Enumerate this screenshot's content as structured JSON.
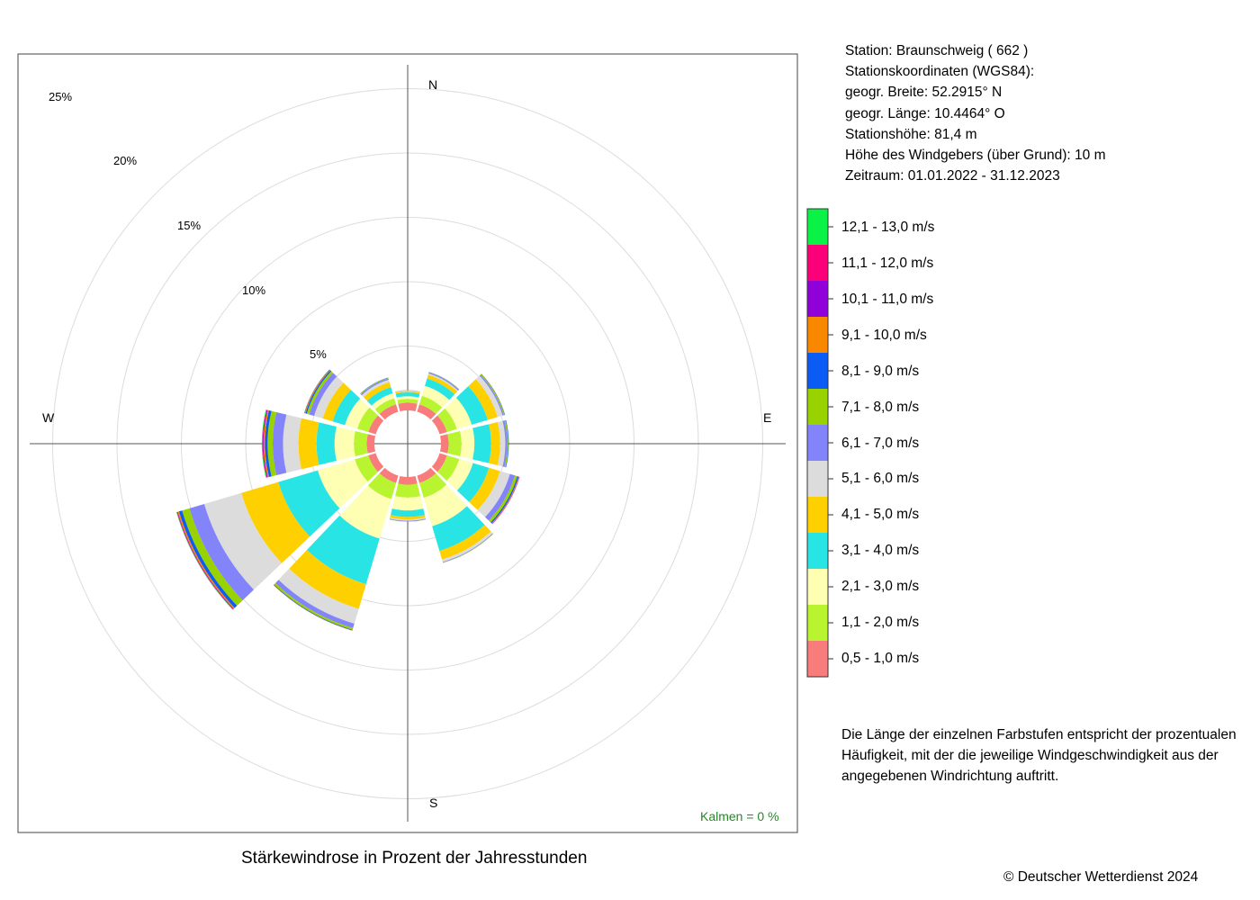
{
  "station": {
    "line1": "Station:  Braunschweig  ( 662 )",
    "line2": "Stationskoordinaten (WGS84):",
    "line3": "geogr. Breite: 52.2915° N",
    "line4": "geogr. Länge: 10.4464° O",
    "line5": "Stationshöhe: 81,4 m",
    "line6": "Höhe des Windgebers (über Grund): 10 m",
    "line7": "Zeitraum: 01.01.2022 - 31.12.2023"
  },
  "note": "Die Länge der einzelnen Farbstufen entspricht der prozentualen Häufigkeit, mit der die jeweilige Windgeschwindigkeit aus der angegebenen Windrichtung auftritt.",
  "caption": "Stärkewindrose in Prozent der Jahresstunden",
  "copyright": "© Deutscher Wetterdienst  2024",
  "kalmen": "Kalmen  =  0 %",
  "chart_data": {
    "type": "wind-rose",
    "title": "Stärkewindrose in Prozent der Jahresstunden",
    "compass": {
      "n": "N",
      "e": "E",
      "s": "S",
      "w": "W"
    },
    "radial_ticks": [
      5,
      10,
      15,
      20,
      25
    ],
    "radial_tick_labels": [
      "5%",
      "10%",
      "15%",
      "20%",
      "25%"
    ],
    "grid": true,
    "legend_position": "right",
    "speed_classes": [
      {
        "label": "0,5 - 1,0 m/s",
        "color": "#f87c7c"
      },
      {
        "label": "1,1 - 2,0 m/s",
        "color": "#b9f431"
      },
      {
        "label": "2,1 - 3,0 m/s",
        "color": "#feffb2"
      },
      {
        "label": "3,1 - 4,0 m/s",
        "color": "#29e4e4"
      },
      {
        "label": "4,1 - 5,0 m/s",
        "color": "#fed000"
      },
      {
        "label": "5,1 - 6,0 m/s",
        "color": "#dcdcdc"
      },
      {
        "label": "6,1 - 7,0 m/s",
        "color": "#8484fa"
      },
      {
        "label": "7,1 - 8,0 m/s",
        "color": "#98d200"
      },
      {
        "label": "8,1 - 9,0 m/s",
        "color": "#0a5cf4"
      },
      {
        "label": "9,1 - 10,0 m/s",
        "color": "#fa8700"
      },
      {
        "label": "10,1 - 11,0 m/s",
        "color": "#9000d8"
      },
      {
        "label": "11,1 - 12,0 m/s",
        "color": "#fc0079"
      },
      {
        "label": "12,1 - 13,0 m/s",
        "color": "#09f245"
      }
    ],
    "sectors": [
      {
        "direction_deg": 0,
        "values": [
          0.6,
          0.3,
          0.2,
          0.3,
          0.1,
          0.05,
          0.02,
          0.01,
          0,
          0,
          0,
          0,
          0
        ]
      },
      {
        "direction_deg": 30,
        "values": [
          0.6,
          0.7,
          0.8,
          0.6,
          0.3,
          0.1,
          0.08,
          0.03,
          0.02,
          0,
          0,
          0,
          0
        ]
      },
      {
        "direction_deg": 60,
        "values": [
          0.6,
          0.8,
          1.2,
          1.3,
          0.8,
          0.4,
          0.1,
          0.07,
          0.03,
          0.01,
          0,
          0,
          0
        ]
      },
      {
        "direction_deg": 90,
        "values": [
          0.6,
          1.0,
          1.0,
          1.3,
          0.7,
          0.4,
          0.15,
          0.08,
          0.04,
          0,
          0,
          0,
          0
        ]
      },
      {
        "direction_deg": 120,
        "values": [
          0.6,
          1.0,
          1.1,
          1.3,
          0.9,
          0.8,
          0.4,
          0.2,
          0.1,
          0.05,
          0.02,
          0.02,
          0
        ]
      },
      {
        "direction_deg": 150,
        "values": [
          0.6,
          1.2,
          2.3,
          2.0,
          0.7,
          0.2,
          0.05,
          0.03,
          0,
          0,
          0,
          0,
          0
        ]
      },
      {
        "direction_deg": 180,
        "values": [
          0.6,
          1.0,
          1.0,
          0.5,
          0.2,
          0.1,
          0.05,
          0.02,
          0,
          0,
          0,
          0,
          0
        ]
      },
      {
        "direction_deg": 210,
        "values": [
          0.6,
          1.3,
          3.2,
          3.7,
          2.0,
          1.2,
          0.35,
          0.15,
          0.05,
          0.02,
          0,
          0,
          0
        ]
      },
      {
        "direction_deg": 240,
        "values": [
          0.6,
          1.1,
          3.0,
          3.2,
          3.0,
          3.0,
          1.2,
          0.6,
          0.25,
          0.1,
          0.04,
          0.04,
          0.03
        ]
      },
      {
        "direction_deg": 270,
        "values": [
          0.6,
          1.0,
          1.5,
          1.4,
          1.4,
          1.2,
          0.8,
          0.4,
          0.2,
          0.1,
          0.05,
          0.05,
          0.05
        ]
      },
      {
        "direction_deg": 300,
        "values": [
          0.6,
          0.9,
          1.0,
          1.0,
          0.8,
          0.7,
          0.4,
          0.2,
          0.1,
          0.05,
          0.02,
          0.02,
          0.02
        ]
      },
      {
        "direction_deg": 330,
        "values": [
          0.6,
          0.5,
          0.4,
          0.5,
          0.4,
          0.2,
          0.1,
          0.05,
          0.02,
          0,
          0,
          0,
          0
        ]
      }
    ]
  }
}
